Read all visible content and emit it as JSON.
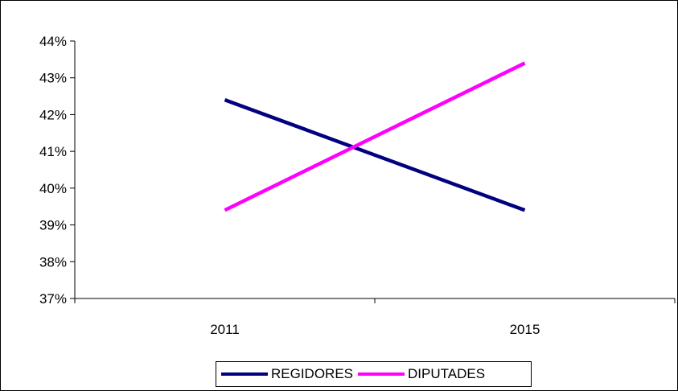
{
  "chart_data": {
    "type": "line",
    "title": "",
    "xlabel": "",
    "ylabel": "",
    "categories": [
      "2011",
      "2015"
    ],
    "ylim": [
      37,
      44
    ],
    "yticks": [
      "37%",
      "38%",
      "39%",
      "40%",
      "41%",
      "42%",
      "43%",
      "44%"
    ],
    "grid": false,
    "legend_position": "bottom",
    "series": [
      {
        "name": "REGIDORES",
        "values": [
          42.4,
          39.4
        ],
        "color": "#000080"
      },
      {
        "name": "DIPUTADES",
        "values": [
          39.4,
          43.4
        ],
        "color": "#FF00FF"
      }
    ]
  }
}
